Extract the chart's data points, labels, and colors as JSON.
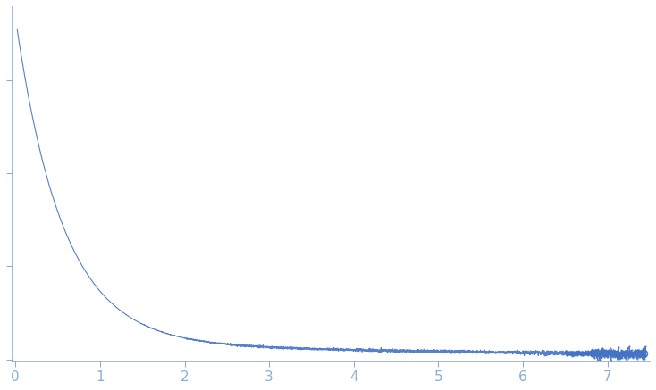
{
  "title": "",
  "xlabel": "",
  "ylabel": "",
  "xlim": [
    -0.05,
    7.5
  ],
  "x_ticks": [
    0,
    1,
    2,
    3,
    4,
    5,
    6,
    7
  ],
  "curve_color": "#4472C4",
  "background_color": "#ffffff",
  "spine_color": "#4472C4",
  "tick_label_color": "#8aafd4",
  "figsize": [
    7.34,
    4.37
  ],
  "dpi": 100
}
